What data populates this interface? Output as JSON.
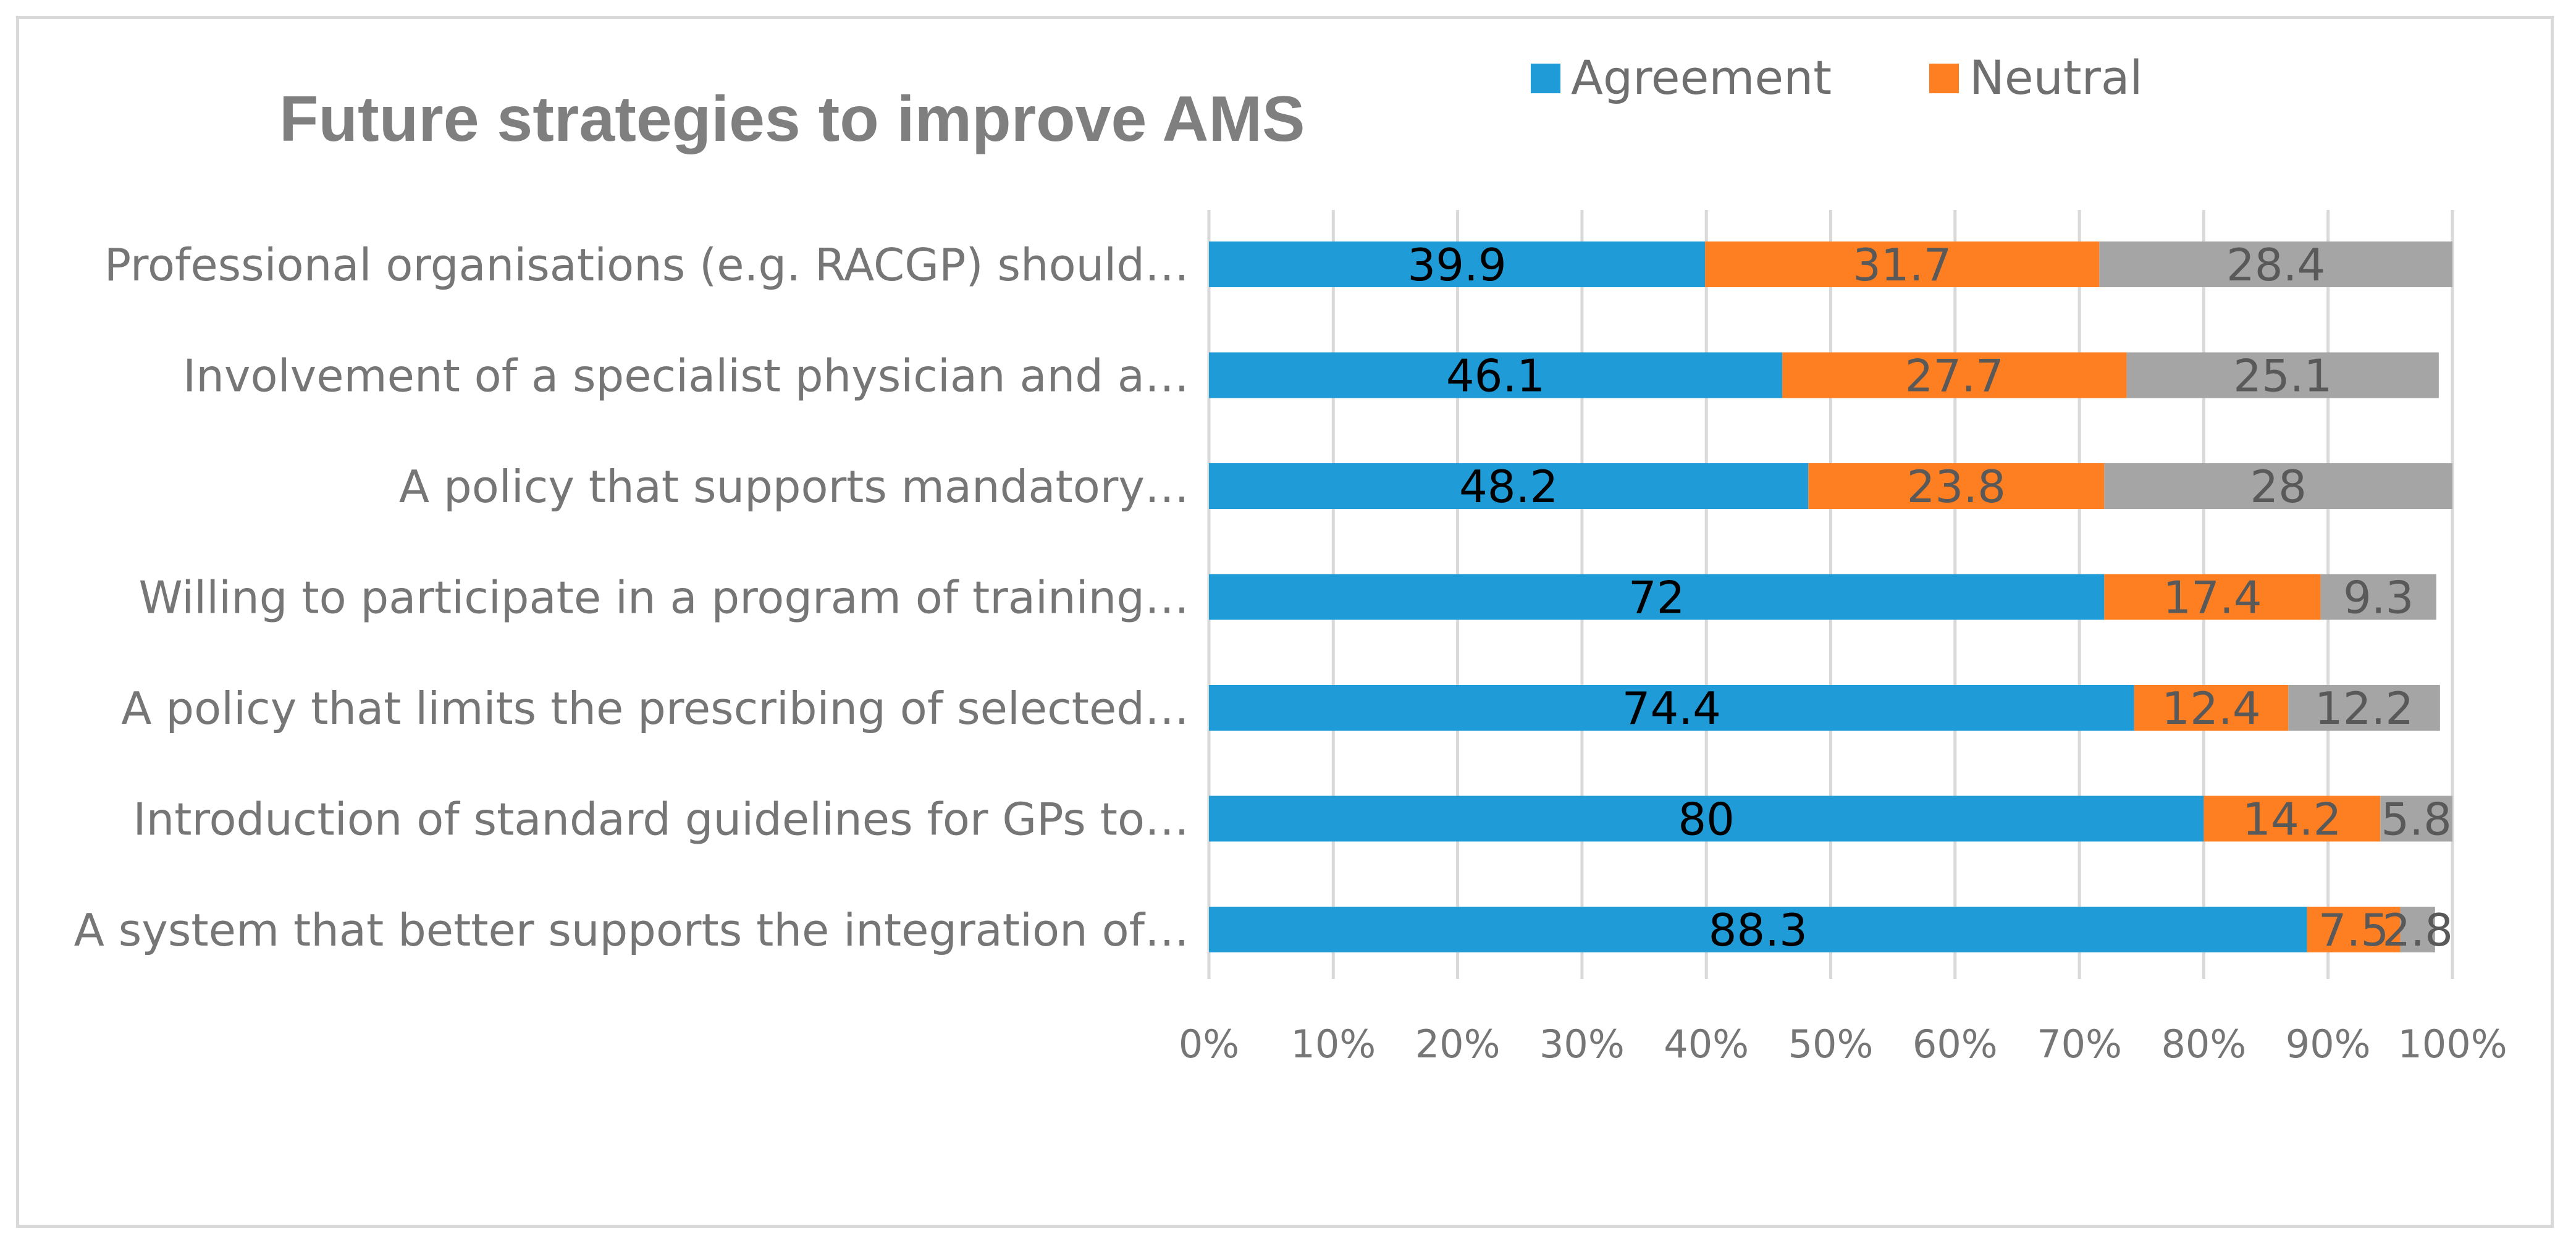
{
  "chart_data": {
    "type": "bar",
    "orientation": "horizontal",
    "stacked": true,
    "title": "Future strategies to improve AMS",
    "categories": [
      "Professional organisations (e.g. RACGP) should…",
      "Involvement of a specialist physician and a…",
      "A policy that supports mandatory…",
      "Willing to participate in a program of training…",
      "A policy that limits the prescribing of selected…",
      "Introduction of standard guidelines for GPs to…",
      "A system that better supports the integration of…"
    ],
    "series": [
      {
        "name": "Agreement",
        "color": "#1f9bd7",
        "label_color": "#000000",
        "values": [
          39.9,
          46.1,
          48.2,
          72,
          74.4,
          80,
          88.3
        ]
      },
      {
        "name": "Neutral",
        "color": "#fd7f22",
        "label_color": "#595959",
        "values": [
          31.7,
          27.7,
          23.8,
          17.4,
          12.4,
          14.2,
          7.5
        ]
      },
      {
        "name": "",
        "color": "#a5a5a5",
        "label_color": "#595959",
        "values": [
          28.4,
          25.1,
          28,
          9.3,
          12.2,
          5.8,
          2.8
        ]
      }
    ],
    "xlim": [
      0,
      100
    ],
    "xticks": [
      "0%",
      "10%",
      "20%",
      "30%",
      "40%",
      "50%",
      "60%",
      "70%",
      "80%",
      "90%",
      "100%"
    ],
    "grid": true,
    "legend": "top-right"
  }
}
